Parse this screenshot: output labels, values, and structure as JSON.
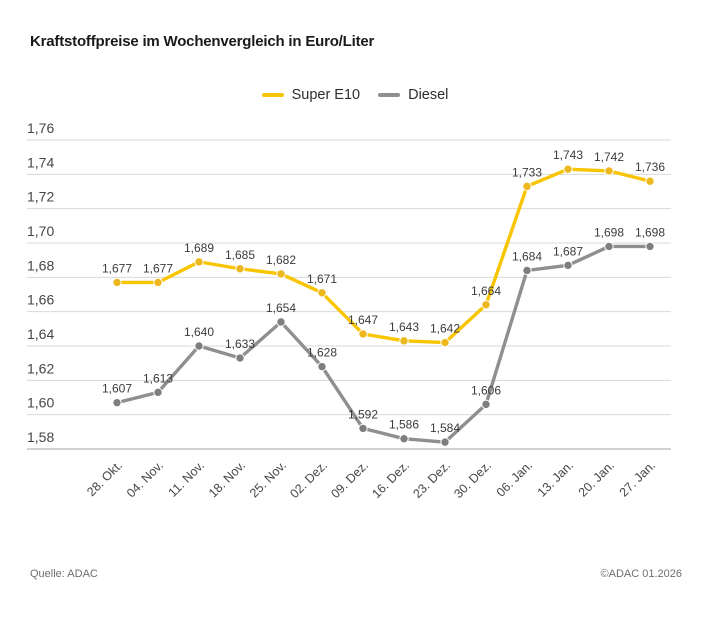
{
  "title": "Kraftstoffpreise im Wochenvergleich in Euro/Liter",
  "footer": {
    "source": "Quelle: ADAC",
    "copyright": "©ADAC 01.2026"
  },
  "colors": {
    "super_e10_line": "#f8c500",
    "super_e10_marker": "#edb71e",
    "diesel_line": "#8f8f8f",
    "diesel_marker": "#7e7e7e",
    "gridline": "#d9d9d9",
    "axis_line": "#a6a6a6",
    "tick_label": "#464646",
    "data_label": "#3b3b3b"
  },
  "chart_data": {
    "type": "line",
    "title": "Kraftstoffpreise im Wochenvergleich in Euro/Liter",
    "categories": [
      "28. Okt.",
      "04. Nov.",
      "11. Nov.",
      "18. Nov.",
      "25. Nov.",
      "02. Dez.",
      "09. Dez.",
      "16. Dez.",
      "23. Dez.",
      "30. Dez.",
      "06. Jan.",
      "13. Jan.",
      "20. Jan.",
      "27. Jan."
    ],
    "series": [
      {
        "name": "Super E10",
        "color": "#f8c500",
        "marker_color": "#edb71e",
        "values": [
          1.677,
          1.677,
          1.689,
          1.685,
          1.682,
          1.671,
          1.647,
          1.643,
          1.642,
          1.664,
          1.733,
          1.743,
          1.742,
          1.736
        ]
      },
      {
        "name": "Diesel",
        "color": "#8f8f8f",
        "marker_color": "#7e7e7e",
        "values": [
          1.607,
          1.613,
          1.64,
          1.633,
          1.654,
          1.628,
          1.592,
          1.586,
          1.584,
          1.606,
          1.684,
          1.687,
          1.698,
          1.698
        ]
      }
    ],
    "ylim": [
      1.58,
      1.76
    ],
    "ytick_step": 0.02,
    "ytick_labels": [
      "1,58",
      "1,60",
      "1,62",
      "1,64",
      "1,66",
      "1,68",
      "1,70",
      "1,72",
      "1,74",
      "1,76"
    ],
    "decimal_separator": ",",
    "grid": true,
    "legend_position": "top-center",
    "xlabel": "",
    "ylabel": "Euro/Liter"
  }
}
